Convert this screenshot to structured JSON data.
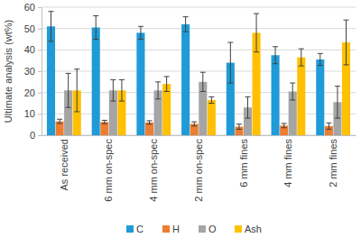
{
  "chart_data": {
    "type": "bar",
    "y_label": "Ultimate analysis (wt%)",
    "categories": [
      "As received",
      "6 mm on-spec",
      "4 mm on-spec",
      "2 mm on-spec",
      "6 mm fines",
      "4 mm fines",
      "2 mm fines"
    ],
    "series": [
      {
        "name": "C",
        "color": "#1f9bd7",
        "values": [
          51,
          50.5,
          48,
          52,
          34,
          37.5,
          35.5
        ],
        "errors": [
          7,
          5.5,
          3,
          3.5,
          9.5,
          4,
          2.8
        ]
      },
      {
        "name": "H",
        "color": "#ed7d31",
        "values": [
          6.5,
          6.2,
          6,
          5.3,
          4,
          4.5,
          4.3
        ],
        "errors": [
          1,
          0.8,
          0.8,
          1,
          1.2,
          1,
          1.5
        ]
      },
      {
        "name": "O",
        "color": "#a5a5a5",
        "values": [
          21,
          21,
          21,
          25,
          13,
          20.5,
          15.5
        ],
        "errors": [
          8,
          5,
          4,
          4.5,
          5,
          4,
          7.5
        ]
      },
      {
        "name": "Ash",
        "color": "#ffc000",
        "values": [
          21,
          21,
          24,
          16.5,
          48,
          36.5,
          43.5
        ],
        "errors": [
          10,
          5,
          3.5,
          1.5,
          9,
          4,
          10.5
        ]
      }
    ],
    "ylim": [
      0,
      60
    ],
    "yticks": [
      0,
      10,
      20,
      30,
      40,
      50,
      60
    ],
    "grid": true,
    "legend": "bottom"
  }
}
